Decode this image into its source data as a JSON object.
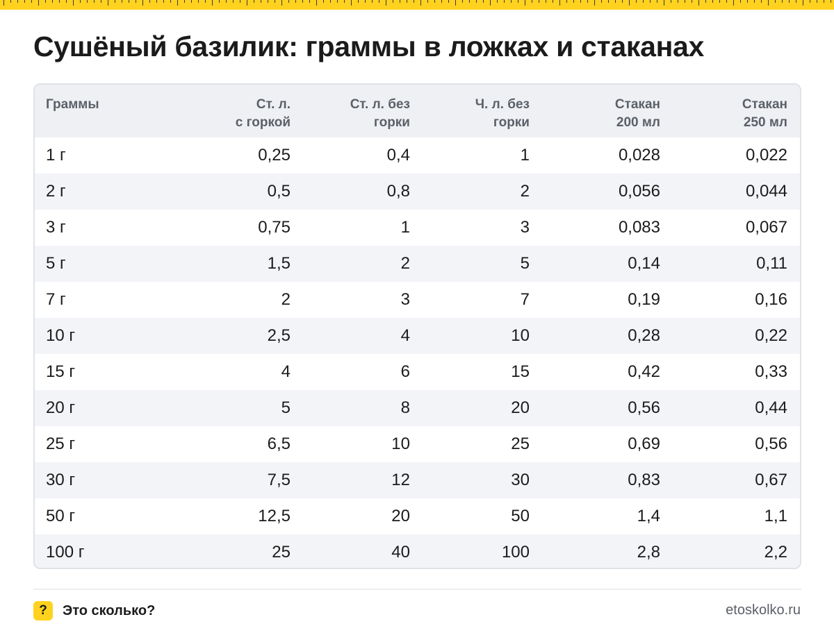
{
  "page": {
    "title": "Сушёный базилик: граммы в ложках и стаканах"
  },
  "table": {
    "headers": [
      [
        "Граммы",
        ""
      ],
      [
        "Ст. л.",
        "с горкой"
      ],
      [
        "Ст. л. без",
        "горки"
      ],
      [
        "Ч. л. без",
        "горки"
      ],
      [
        "Стакан",
        "200 мл"
      ],
      [
        "Стакан",
        "250 мл"
      ]
    ],
    "rows": [
      [
        "1 г",
        "0,25",
        "0,4",
        "1",
        "0,028",
        "0,022"
      ],
      [
        "2 г",
        "0,5",
        "0,8",
        "2",
        "0,056",
        "0,044"
      ],
      [
        "3 г",
        "0,75",
        "1",
        "3",
        "0,083",
        "0,067"
      ],
      [
        "5 г",
        "1,5",
        "2",
        "5",
        "0,14",
        "0,11"
      ],
      [
        "7 г",
        "2",
        "3",
        "7",
        "0,19",
        "0,16"
      ],
      [
        "10 г",
        "2,5",
        "4",
        "10",
        "0,28",
        "0,22"
      ],
      [
        "15 г",
        "4",
        "6",
        "15",
        "0,42",
        "0,33"
      ],
      [
        "20 г",
        "5",
        "8",
        "20",
        "0,56",
        "0,44"
      ],
      [
        "25 г",
        "6,5",
        "10",
        "25",
        "0,69",
        "0,56"
      ],
      [
        "30 г",
        "7,5",
        "12",
        "30",
        "0,83",
        "0,67"
      ],
      [
        "50 г",
        "12,5",
        "20",
        "50",
        "1,4",
        "1,1"
      ],
      [
        "100 г",
        "25",
        "40",
        "100",
        "2,8",
        "2,2"
      ]
    ]
  },
  "footer": {
    "badge": "?",
    "brand": "Это сколько?",
    "site": "etoskolko.ru"
  },
  "colors": {
    "accent": "#ffd21f",
    "header_bg": "#eef0f4",
    "stripe_bg": "#f3f4f7",
    "border": "#dfe2e7",
    "text": "#1b1b1b",
    "muted": "#5b6068"
  }
}
